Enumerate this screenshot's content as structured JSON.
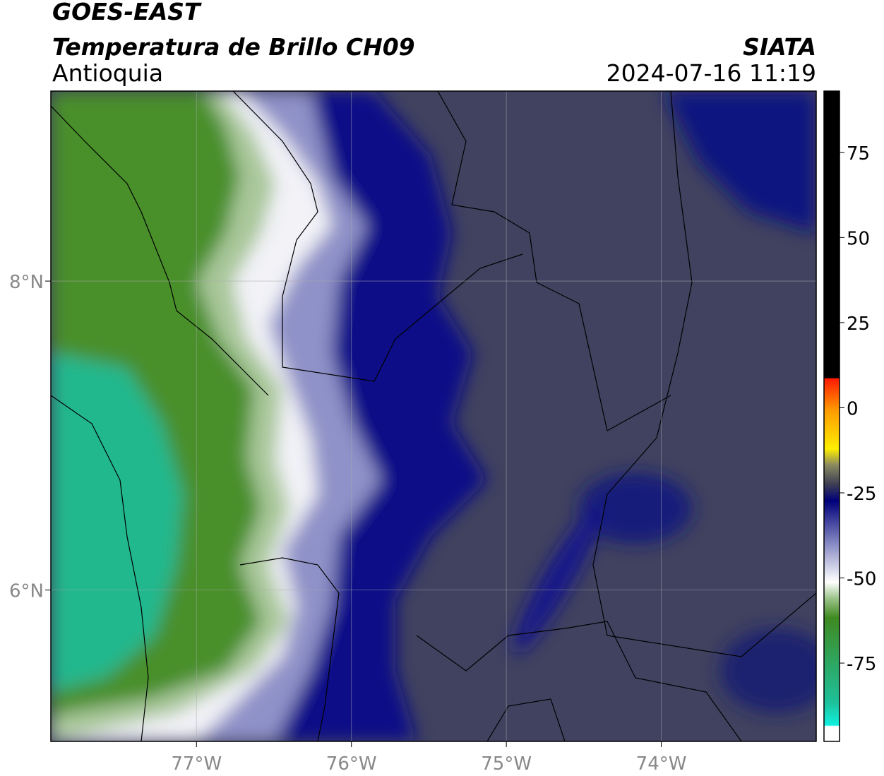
{
  "map": {
    "title": "GOES-EAST",
    "subtitle": "Temperatura de Brillo CH09",
    "region": "Antioquia",
    "source": "SIATA",
    "datetime": "2024-07-16 11:19",
    "xlim": [
      -77.94,
      -73.0
    ],
    "ylim": [
      5.02,
      9.23
    ],
    "xticks": [
      {
        "value": -77,
        "label": "77°W"
      },
      {
        "value": -76,
        "label": "76°W"
      },
      {
        "value": -75,
        "label": "75°W"
      },
      {
        "value": -74,
        "label": "74°W"
      }
    ],
    "yticks": [
      {
        "value": 6,
        "label": "6°N"
      },
      {
        "value": 8,
        "label": "8°N"
      }
    ],
    "colorbar": {
      "lim": [
        -98,
        93
      ],
      "ticks": [
        -75,
        -50,
        -25,
        0,
        25,
        50,
        75
      ]
    }
  }
}
